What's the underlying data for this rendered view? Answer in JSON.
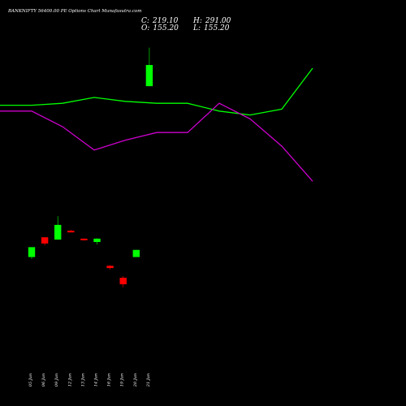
{
  "title": "BANKNIFTY 56400.00 PE Options Chart Munafasutra.com",
  "ohlc": {
    "close_label": "C:",
    "close_value": "219.10",
    "high_label": "H:",
    "high_value": "291.00",
    "open_label": "O:",
    "open_value": "155.20",
    "low_label": "L:",
    "low_value": "155.20"
  },
  "colors": {
    "background": "#000000",
    "up": "#00ff00",
    "down": "#ff0000",
    "line_green": "#00ff00",
    "line_magenta": "#cc00cc",
    "text": "#ffffff"
  },
  "chart_data": {
    "type": "candlestick",
    "title": "BANKNIFTY 56400.00 PE Options Chart Munafasutra.com",
    "categories": [
      "05 Jun",
      "06 Jun",
      "09 Jun",
      "12 Jun",
      "13 Jun",
      "14 Jun",
      "16 Jun",
      "19 Jun",
      "20 Jun",
      "21 Jun"
    ],
    "candles": [
      {
        "open": 8.8,
        "high": 10.5,
        "low": 8.5,
        "close": 10.5
      },
      {
        "open": 12.5,
        "high": 12.5,
        "low": 10.8,
        "close": 11.2
      },
      {
        "open": 12.0,
        "high": 18.0,
        "low": 12.0,
        "close": 15.5
      },
      {
        "open": 14.0,
        "high": 14.2,
        "low": 13.8,
        "close": 13.9
      },
      {
        "open": 12.2,
        "high": 12.2,
        "low": 11.8,
        "close": 11.9
      },
      {
        "open": 11.5,
        "high": 12.3,
        "low": 11.0,
        "close": 12.2
      },
      {
        "open": 7.5,
        "high": 7.6,
        "low": 7.0,
        "close": 7.2
      },
      {
        "open": 6.0,
        "high": 6.2,
        "low": 5.0,
        "close": 5.3
      },
      {
        "open": 8.8,
        "high": 10.0,
        "low": 8.8,
        "close": 10.0
      },
      {
        "open": 155.2,
        "high": 291.0,
        "low": 155.2,
        "close": 219.1
      }
    ],
    "overlay_lines": [
      {
        "color": "#00ff00",
        "values": [
          0.71,
          0.71,
          0.72,
          0.75,
          0.73,
          0.72,
          0.72,
          0.68,
          0.66,
          0.69,
          0.9
        ]
      },
      {
        "color": "#cc00cc",
        "values": [
          0.68,
          0.68,
          0.6,
          0.48,
          0.53,
          0.57,
          0.57,
          0.72,
          0.64,
          0.5,
          0.32
        ]
      }
    ],
    "xlabel": "",
    "ylabel": "",
    "grid": false,
    "legend": "none"
  }
}
